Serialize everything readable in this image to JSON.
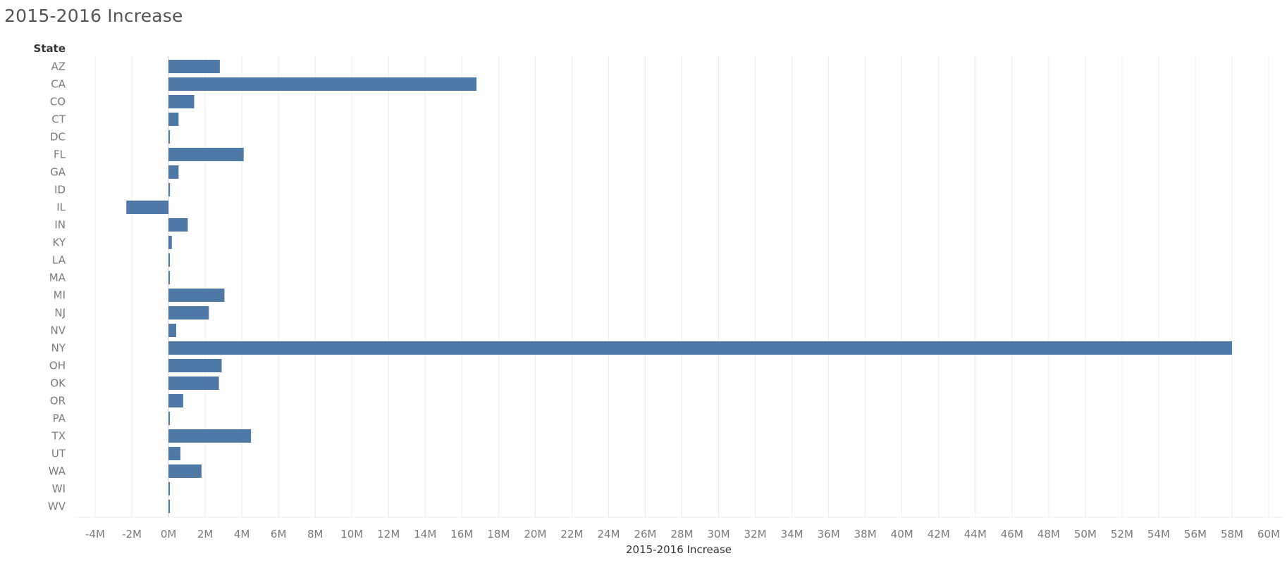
{
  "header": {
    "title": "2015-2016 Increase"
  },
  "colors": {
    "bar": "#4e79a7",
    "grid": "#ececec",
    "zero_line": "#cfcfcf"
  },
  "chart_data": {
    "type": "bar",
    "orientation": "horizontal",
    "title": "2015-2016 Increase",
    "ylabel": "State",
    "xlabel": "2015-2016 Increase",
    "xlim": [
      -4000000,
      60000000
    ],
    "grid": true,
    "x_ticks": [
      -4000000,
      -2000000,
      0,
      2000000,
      4000000,
      6000000,
      8000000,
      10000000,
      12000000,
      14000000,
      16000000,
      18000000,
      20000000,
      22000000,
      24000000,
      26000000,
      28000000,
      30000000,
      32000000,
      34000000,
      36000000,
      38000000,
      40000000,
      42000000,
      44000000,
      46000000,
      48000000,
      50000000,
      52000000,
      54000000,
      56000000,
      58000000,
      60000000
    ],
    "x_tick_labels": [
      "-4M",
      "-2M",
      "0M",
      "2M",
      "4M",
      "6M",
      "8M",
      "10M",
      "12M",
      "14M",
      "16M",
      "18M",
      "20M",
      "22M",
      "24M",
      "26M",
      "28M",
      "30M",
      "32M",
      "34M",
      "36M",
      "38M",
      "40M",
      "42M",
      "44M",
      "46M",
      "48M",
      "50M",
      "52M",
      "54M",
      "56M",
      "58M",
      "60M"
    ],
    "categories": [
      "AZ",
      "CA",
      "CO",
      "CT",
      "DC",
      "FL",
      "GA",
      "ID",
      "IL",
      "IN",
      "KY",
      "LA",
      "MA",
      "MI",
      "NJ",
      "NV",
      "NY",
      "OH",
      "OK",
      "OR",
      "PA",
      "TX",
      "UT",
      "WA",
      "WI",
      "WV"
    ],
    "values": [
      2800000,
      16800000,
      1400000,
      550000,
      50000,
      4100000,
      550000,
      80000,
      -2300000,
      1050000,
      180000,
      50000,
      30000,
      3050000,
      2200000,
      420000,
      58000000,
      2900000,
      2750000,
      800000,
      50000,
      4500000,
      650000,
      1800000,
      40000,
      50000
    ]
  }
}
